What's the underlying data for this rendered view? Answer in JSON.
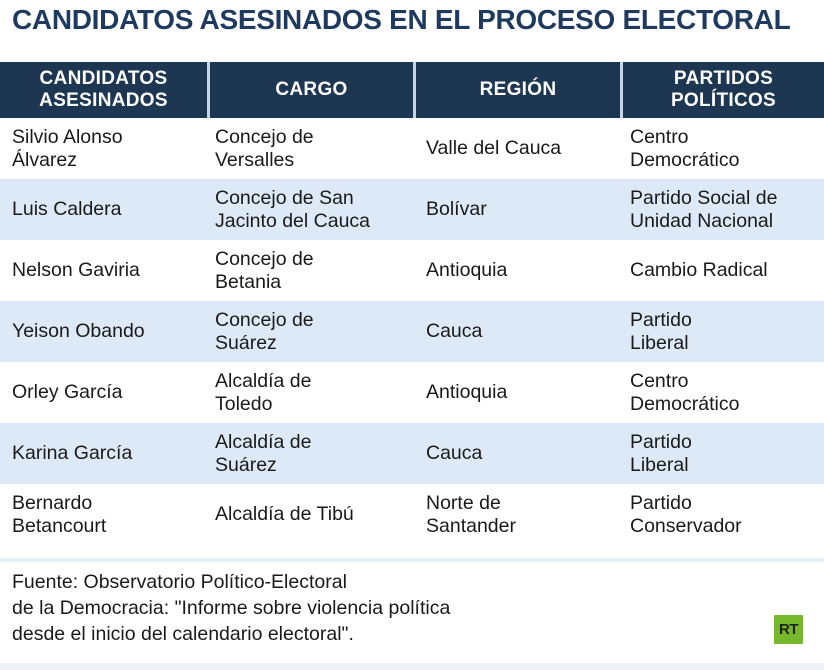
{
  "title": "CANDIDATOS ASESINADOS EN EL PROCESO ELECTORAL",
  "table": {
    "columns": [
      "CANDIDATOS\nASESINADOS",
      "CARGO",
      "REGIÓN",
      "PARTIDOS\nPOLÍTICOS"
    ],
    "rows": [
      {
        "candidato": "Silvio Alonso\nÁlvarez",
        "cargo": "Concejo de\nVersalles",
        "region": "Valle del Cauca",
        "partido": "Centro\nDemocrático"
      },
      {
        "candidato": "Luis Caldera",
        "cargo": "Concejo de San\nJacinto del Cauca",
        "region": "Bolívar",
        "partido": "Partido Social de\nUnidad Nacional"
      },
      {
        "candidato": "Nelson Gaviria",
        "cargo": "Concejo de\nBetania",
        "region": "Antioquia",
        "partido": "Cambio Radical"
      },
      {
        "candidato": "Yeison Obando",
        "cargo": "Concejo de\nSuárez",
        "region": "Cauca",
        "partido": "Partido\nLiberal"
      },
      {
        "candidato": "Orley García",
        "cargo": "Alcaldía de\nToledo",
        "region": "Antioquia",
        "partido": "Centro\nDemocrático"
      },
      {
        "candidato": "Karina García",
        "cargo": "Alcaldía de\nSuárez",
        "region": "Cauca",
        "partido": "Partido\nLiberal"
      },
      {
        "candidato": "Bernardo\nBetancourt",
        "cargo": "Alcaldía de Tibú",
        "region": "Norte de\nSantander",
        "partido": "Partido\nConservador"
      }
    ]
  },
  "footer": {
    "source": "Fuente: Observatorio Político-Electoral\nde la Democracia: \"Informe sobre violencia política\ndesde el inicio del calendario electoral\"."
  },
  "logo": {
    "label": "RT"
  },
  "colors": {
    "title": "#1e3a5f",
    "navy": "#1d3652",
    "sep": "#c3d6e8",
    "rowalt": "#dde9f6",
    "text": "#1a1a1a",
    "band": "#e7eef6",
    "bottom": "#eef2f7",
    "green": "#76b72b"
  },
  "chart_data": {
    "type": "table",
    "title": "CANDIDATOS ASESINADOS EN EL PROCESO ELECTORAL",
    "columns": [
      "CANDIDATOS ASESINADOS",
      "CARGO",
      "REGIÓN",
      "PARTIDOS POLÍTICOS"
    ],
    "rows": [
      [
        "Silvio Alonso Álvarez",
        "Concejo de Versalles",
        "Valle del Cauca",
        "Centro Democrático"
      ],
      [
        "Luis Caldera",
        "Concejo de San Jacinto del Cauca",
        "Bolívar",
        "Partido Social de Unidad Nacional"
      ],
      [
        "Nelson Gaviria",
        "Concejo de Betania",
        "Antioquia",
        "Cambio Radical"
      ],
      [
        "Yeison Obando",
        "Concejo de Suárez",
        "Cauca",
        "Partido Liberal"
      ],
      [
        "Orley García",
        "Alcaldía de Toledo",
        "Antioquia",
        "Centro Democrático"
      ],
      [
        "Karina García",
        "Alcaldía de Suárez",
        "Cauca",
        "Partido Liberal"
      ],
      [
        "Bernardo Betancourt",
        "Alcaldía de Tibú",
        "Norte de Santander",
        "Partido Conservador"
      ]
    ],
    "source": "Fuente: Observatorio Político-Electoral de la Democracia: \"Informe sobre violencia política desde el inicio del calendario electoral\"."
  }
}
